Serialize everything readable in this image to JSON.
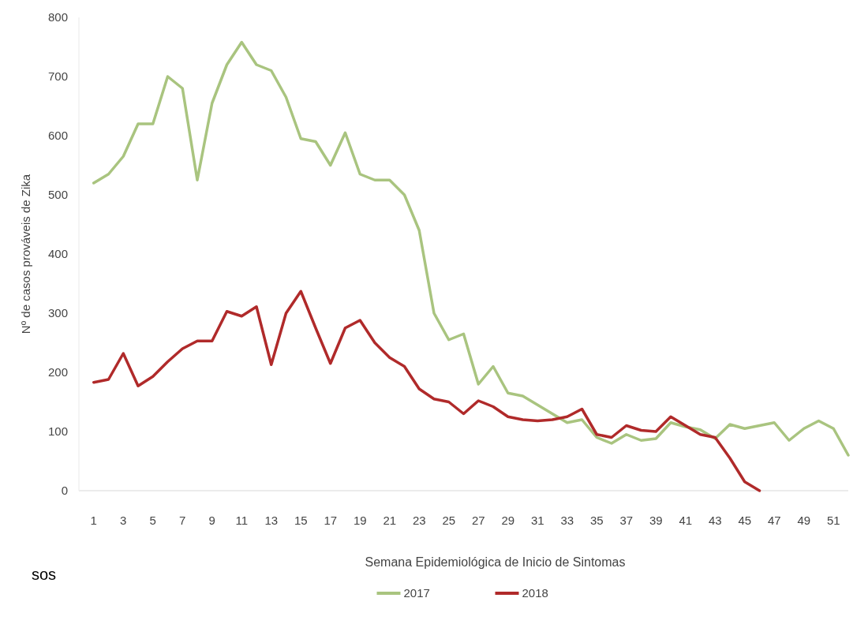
{
  "chart_data": {
    "type": "line",
    "xlabel": "Semana Epidemiológica de Inicio de Sintomas",
    "ylabel": "Nº de casos prováveis de Zika",
    "annotations": [
      "sos"
    ],
    "x": [
      1,
      2,
      3,
      4,
      5,
      6,
      7,
      8,
      9,
      10,
      11,
      12,
      13,
      14,
      15,
      16,
      17,
      18,
      19,
      20,
      21,
      22,
      23,
      24,
      25,
      26,
      27,
      28,
      29,
      30,
      31,
      32,
      33,
      34,
      35,
      36,
      37,
      38,
      39,
      40,
      41,
      42,
      43,
      44,
      45,
      46,
      47,
      48,
      49,
      50,
      51,
      52
    ],
    "series": [
      {
        "name": "2017",
        "color": "#a9c47f",
        "values": [
          520,
          535,
          565,
          620,
          620,
          700,
          680,
          525,
          655,
          720,
          758,
          720,
          710,
          665,
          595,
          590,
          550,
          605,
          535,
          525,
          525,
          500,
          440,
          300,
          255,
          265,
          180,
          210,
          165,
          160,
          145,
          130,
          115,
          120,
          90,
          80,
          95,
          85,
          88,
          115,
          108,
          103,
          88,
          112,
          105,
          110,
          115,
          85,
          105,
          118,
          105,
          60
        ]
      },
      {
        "name": "2018",
        "color": "#b02a2a",
        "values": [
          183,
          188,
          232,
          177,
          193,
          218,
          240,
          253,
          253,
          303,
          295,
          311,
          213,
          300,
          337,
          275,
          215,
          275,
          288,
          250,
          225,
          210,
          172,
          155,
          150,
          130,
          152,
          142,
          125,
          120,
          118,
          120,
          125,
          138,
          95,
          90,
          110,
          102,
          100,
          125,
          110,
          95,
          90,
          55,
          15,
          0,
          null,
          null,
          null,
          null,
          null,
          null
        ]
      }
    ],
    "xlim": [
      0,
      52
    ],
    "xticks": [
      1,
      3,
      5,
      7,
      9,
      11,
      13,
      15,
      17,
      19,
      21,
      23,
      25,
      27,
      29,
      31,
      33,
      35,
      37,
      39,
      41,
      43,
      45,
      47,
      49,
      51
    ],
    "ylim": [
      0,
      800
    ],
    "yticks": [
      0,
      100,
      200,
      300,
      400,
      500,
      600,
      700,
      800
    ],
    "legend": "bottom",
    "marker": "none",
    "line_style": "solid"
  }
}
